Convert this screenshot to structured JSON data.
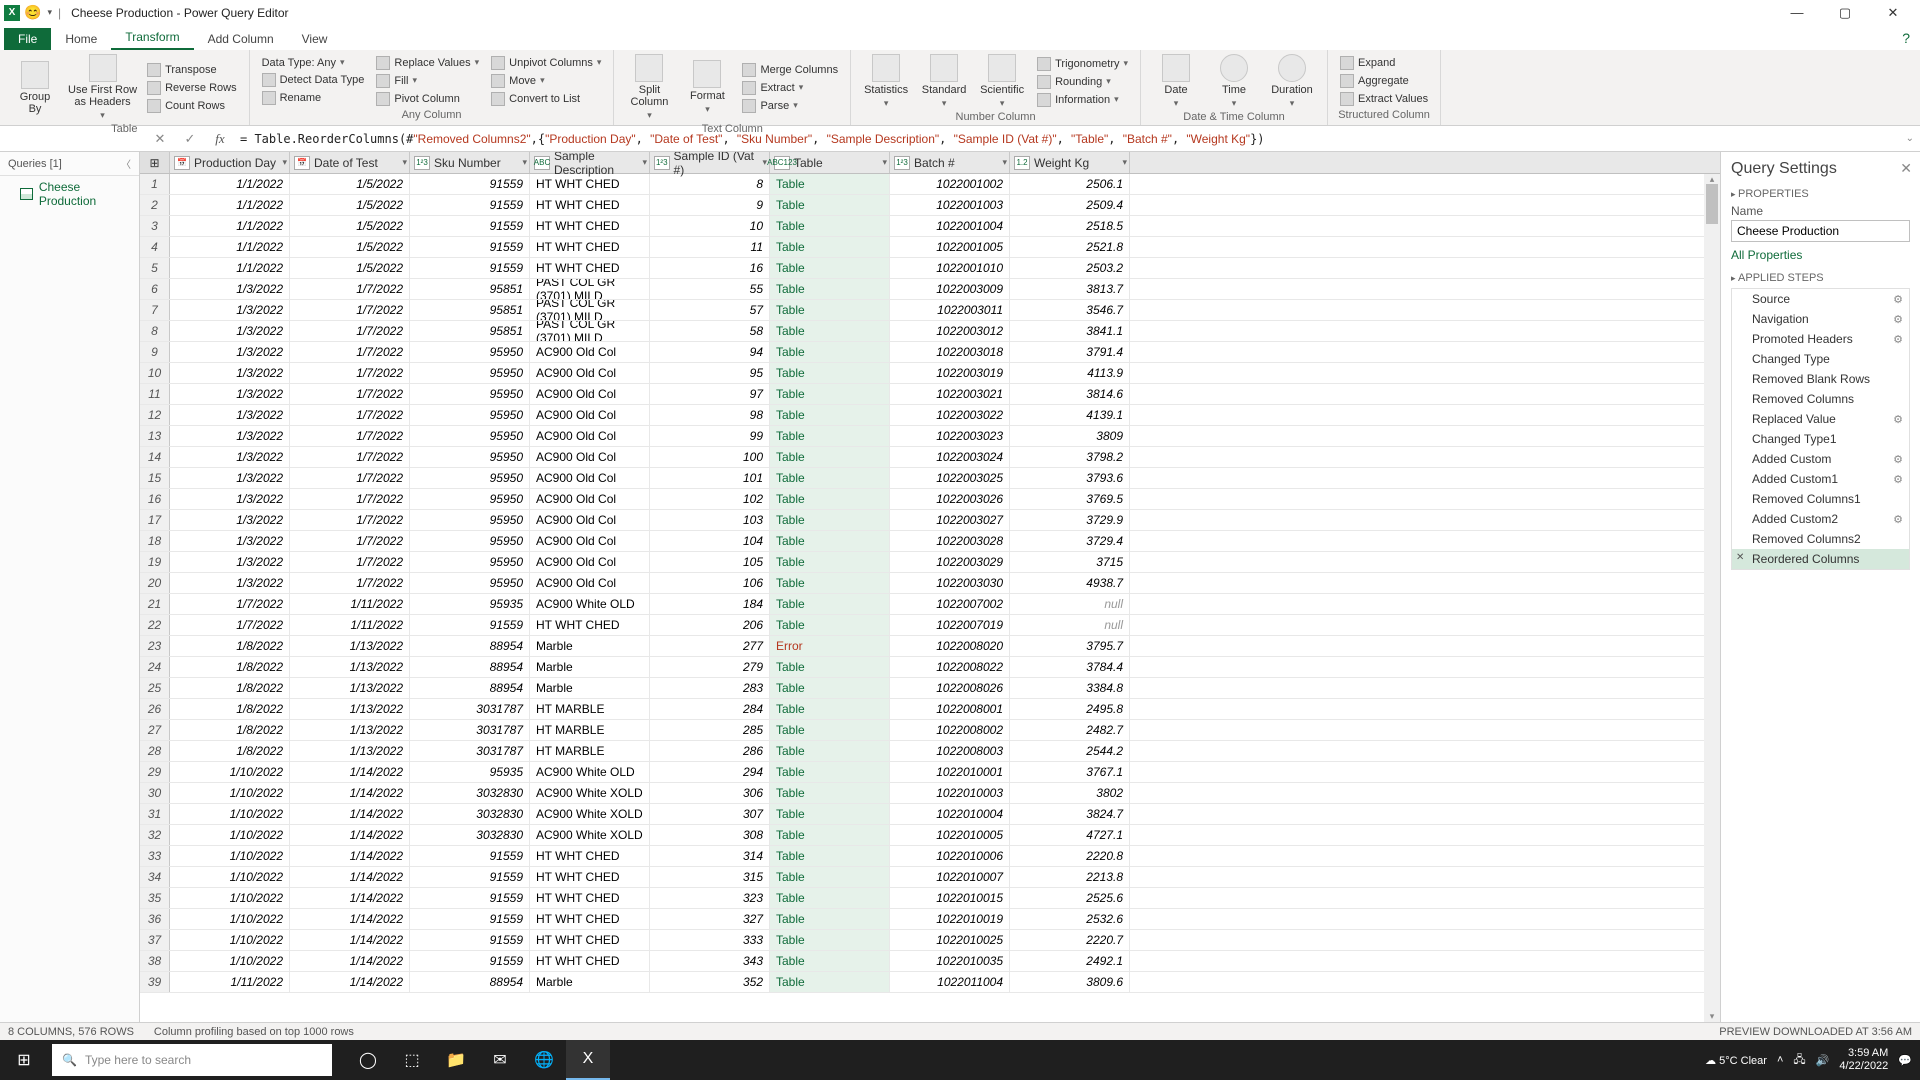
{
  "window": {
    "title": "Cheese Production - Power Query Editor"
  },
  "tabs": {
    "file": "File",
    "home": "Home",
    "transform": "Transform",
    "addcol": "Add Column",
    "view": "View"
  },
  "ribbon": {
    "table": {
      "label": "Table",
      "groupby": "Group\nBy",
      "firstrow": "Use First Row\nas Headers",
      "transpose": "Transpose",
      "reverse": "Reverse Rows",
      "count": "Count Rows"
    },
    "anycol": {
      "label": "Any Column",
      "datatype": "Data Type: Any",
      "detect": "Detect Data Type",
      "rename": "Rename",
      "replace": "Replace Values",
      "fill": "Fill",
      "pivot": "Pivot Column",
      "unpivot": "Unpivot Columns",
      "move": "Move",
      "convert": "Convert to List"
    },
    "textcol": {
      "label": "Text Column",
      "split": "Split\nColumn",
      "format": "Format",
      "merge": "Merge Columns",
      "extract": "Extract",
      "parse": "Parse"
    },
    "numcol": {
      "label": "Number Column",
      "stats": "Statistics",
      "standard": "Standard",
      "scientific": "Scientific",
      "trig": "Trigonometry",
      "rounding": "Rounding",
      "info": "Information"
    },
    "dtcol": {
      "label": "Date & Time Column",
      "date": "Date",
      "time": "Time",
      "duration": "Duration"
    },
    "struct": {
      "label": "Structured Column",
      "expand": "Expand",
      "aggregate": "Aggregate",
      "extractv": "Extract Values"
    }
  },
  "formula": "= Table.ReorderColumns(#\"Removed Columns2\",{\"Production Day\", \"Date of Test\", \"Sku Number\", \"Sample Description\", \"Sample ID (Vat #)\", \"Table\", \"Batch #\", \"Weight Kg\"})",
  "queries": {
    "head": "Queries [1]",
    "item": "Cheese Production"
  },
  "columns": [
    "Production Day",
    "Date of Test",
    "Sku Number",
    "Sample Description",
    "Sample ID (Vat #)",
    "Table",
    "Batch #",
    "Weight Kg"
  ],
  "coltypes": [
    "📅",
    "📅",
    "1²3",
    "ABC",
    "1²3",
    "ABC123",
    "1²3",
    "1.2"
  ],
  "rows": [
    [
      "1/1/2022",
      "1/5/2022",
      "91559",
      "HT WHT CHED",
      "8",
      "Table",
      "1022001002",
      "2506.1"
    ],
    [
      "1/1/2022",
      "1/5/2022",
      "91559",
      "HT WHT CHED",
      "9",
      "Table",
      "1022001003",
      "2509.4"
    ],
    [
      "1/1/2022",
      "1/5/2022",
      "91559",
      "HT WHT CHED",
      "10",
      "Table",
      "1022001004",
      "2518.5"
    ],
    [
      "1/1/2022",
      "1/5/2022",
      "91559",
      "HT WHT CHED",
      "11",
      "Table",
      "1022001005",
      "2521.8"
    ],
    [
      "1/1/2022",
      "1/5/2022",
      "91559",
      "HT WHT CHED",
      "16",
      "Table",
      "1022001010",
      "2503.2"
    ],
    [
      "1/3/2022",
      "1/7/2022",
      "95851",
      "PAST COL GR (3701) MILD",
      "55",
      "Table",
      "1022003009",
      "3813.7"
    ],
    [
      "1/3/2022",
      "1/7/2022",
      "95851",
      "PAST COL GR (3701) MILD",
      "57",
      "Table",
      "1022003011",
      "3546.7"
    ],
    [
      "1/3/2022",
      "1/7/2022",
      "95851",
      "PAST COL GR (3701) MILD",
      "58",
      "Table",
      "1022003012",
      "3841.1"
    ],
    [
      "1/3/2022",
      "1/7/2022",
      "95950",
      "AC900 Old Col",
      "94",
      "Table",
      "1022003018",
      "3791.4"
    ],
    [
      "1/3/2022",
      "1/7/2022",
      "95950",
      "AC900 Old Col",
      "95",
      "Table",
      "1022003019",
      "4113.9"
    ],
    [
      "1/3/2022",
      "1/7/2022",
      "95950",
      "AC900 Old Col",
      "97",
      "Table",
      "1022003021",
      "3814.6"
    ],
    [
      "1/3/2022",
      "1/7/2022",
      "95950",
      "AC900 Old Col",
      "98",
      "Table",
      "1022003022",
      "4139.1"
    ],
    [
      "1/3/2022",
      "1/7/2022",
      "95950",
      "AC900 Old Col",
      "99",
      "Table",
      "1022003023",
      "3809"
    ],
    [
      "1/3/2022",
      "1/7/2022",
      "95950",
      "AC900 Old Col",
      "100",
      "Table",
      "1022003024",
      "3798.2"
    ],
    [
      "1/3/2022",
      "1/7/2022",
      "95950",
      "AC900 Old Col",
      "101",
      "Table",
      "1022003025",
      "3793.6"
    ],
    [
      "1/3/2022",
      "1/7/2022",
      "95950",
      "AC900 Old Col",
      "102",
      "Table",
      "1022003026",
      "3769.5"
    ],
    [
      "1/3/2022",
      "1/7/2022",
      "95950",
      "AC900 Old Col",
      "103",
      "Table",
      "1022003027",
      "3729.9"
    ],
    [
      "1/3/2022",
      "1/7/2022",
      "95950",
      "AC900 Old Col",
      "104",
      "Table",
      "1022003028",
      "3729.4"
    ],
    [
      "1/3/2022",
      "1/7/2022",
      "95950",
      "AC900 Old Col",
      "105",
      "Table",
      "1022003029",
      "3715"
    ],
    [
      "1/3/2022",
      "1/7/2022",
      "95950",
      "AC900 Old Col",
      "106",
      "Table",
      "1022003030",
      "4938.7"
    ],
    [
      "1/7/2022",
      "1/11/2022",
      "95935",
      "AC900 White OLD",
      "184",
      "Table",
      "1022007002",
      "null"
    ],
    [
      "1/7/2022",
      "1/11/2022",
      "91559",
      "HT WHT CHED",
      "206",
      "Table",
      "1022007019",
      "null"
    ],
    [
      "1/8/2022",
      "1/13/2022",
      "88954",
      "Marble",
      "277",
      "Error",
      "1022008020",
      "3795.7"
    ],
    [
      "1/8/2022",
      "1/13/2022",
      "88954",
      "Marble",
      "279",
      "Table",
      "1022008022",
      "3784.4"
    ],
    [
      "1/8/2022",
      "1/13/2022",
      "88954",
      "Marble",
      "283",
      "Table",
      "1022008026",
      "3384.8"
    ],
    [
      "1/8/2022",
      "1/13/2022",
      "3031787",
      "HT MARBLE",
      "284",
      "Table",
      "1022008001",
      "2495.8"
    ],
    [
      "1/8/2022",
      "1/13/2022",
      "3031787",
      "HT MARBLE",
      "285",
      "Table",
      "1022008002",
      "2482.7"
    ],
    [
      "1/8/2022",
      "1/13/2022",
      "3031787",
      "HT MARBLE",
      "286",
      "Table",
      "1022008003",
      "2544.2"
    ],
    [
      "1/10/2022",
      "1/14/2022",
      "95935",
      "AC900 White OLD",
      "294",
      "Table",
      "1022010001",
      "3767.1"
    ],
    [
      "1/10/2022",
      "1/14/2022",
      "3032830",
      "AC900 White XOLD",
      "306",
      "Table",
      "1022010003",
      "3802"
    ],
    [
      "1/10/2022",
      "1/14/2022",
      "3032830",
      "AC900 White XOLD",
      "307",
      "Table",
      "1022010004",
      "3824.7"
    ],
    [
      "1/10/2022",
      "1/14/2022",
      "3032830",
      "AC900 White XOLD",
      "308",
      "Table",
      "1022010005",
      "4727.1"
    ],
    [
      "1/10/2022",
      "1/14/2022",
      "91559",
      "HT WHT CHED",
      "314",
      "Table",
      "1022010006",
      "2220.8"
    ],
    [
      "1/10/2022",
      "1/14/2022",
      "91559",
      "HT WHT CHED",
      "315",
      "Table",
      "1022010007",
      "2213.8"
    ],
    [
      "1/10/2022",
      "1/14/2022",
      "91559",
      "HT WHT CHED",
      "323",
      "Table",
      "1022010015",
      "2525.6"
    ],
    [
      "1/10/2022",
      "1/14/2022",
      "91559",
      "HT WHT CHED",
      "327",
      "Table",
      "1022010019",
      "2532.6"
    ],
    [
      "1/10/2022",
      "1/14/2022",
      "91559",
      "HT WHT CHED",
      "333",
      "Table",
      "1022010025",
      "2220.7"
    ],
    [
      "1/10/2022",
      "1/14/2022",
      "91559",
      "HT WHT CHED",
      "343",
      "Table",
      "1022010035",
      "2492.1"
    ],
    [
      "1/11/2022",
      "1/14/2022",
      "88954",
      "Marble",
      "352",
      "Table",
      "1022011004",
      "3809.6"
    ]
  ],
  "settings": {
    "title": "Query Settings",
    "prop": "PROPERTIES",
    "namelabel": "Name",
    "name": "Cheese Production",
    "allprop": "All Properties",
    "applied": "APPLIED STEPS",
    "steps": [
      {
        "n": "Source",
        "g": true
      },
      {
        "n": "Navigation",
        "g": true
      },
      {
        "n": "Promoted Headers",
        "g": true
      },
      {
        "n": "Changed Type"
      },
      {
        "n": "Removed Blank Rows"
      },
      {
        "n": "Removed Columns"
      },
      {
        "n": "Replaced Value",
        "g": true
      },
      {
        "n": "Changed Type1"
      },
      {
        "n": "Added Custom",
        "g": true
      },
      {
        "n": "Added Custom1",
        "g": true
      },
      {
        "n": "Removed Columns1"
      },
      {
        "n": "Added Custom2",
        "g": true
      },
      {
        "n": "Removed Columns2"
      },
      {
        "n": "Reordered Columns",
        "sel": true
      }
    ]
  },
  "status": {
    "left": "8 COLUMNS, 576 ROWS",
    "mid": "Column profiling based on top 1000 rows",
    "right": "PREVIEW DOWNLOADED AT 3:56 AM"
  },
  "taskbar": {
    "search": "Type here to search",
    "weather": "5°C  Clear",
    "time": "3:59 AM",
    "date": "4/22/2022"
  }
}
